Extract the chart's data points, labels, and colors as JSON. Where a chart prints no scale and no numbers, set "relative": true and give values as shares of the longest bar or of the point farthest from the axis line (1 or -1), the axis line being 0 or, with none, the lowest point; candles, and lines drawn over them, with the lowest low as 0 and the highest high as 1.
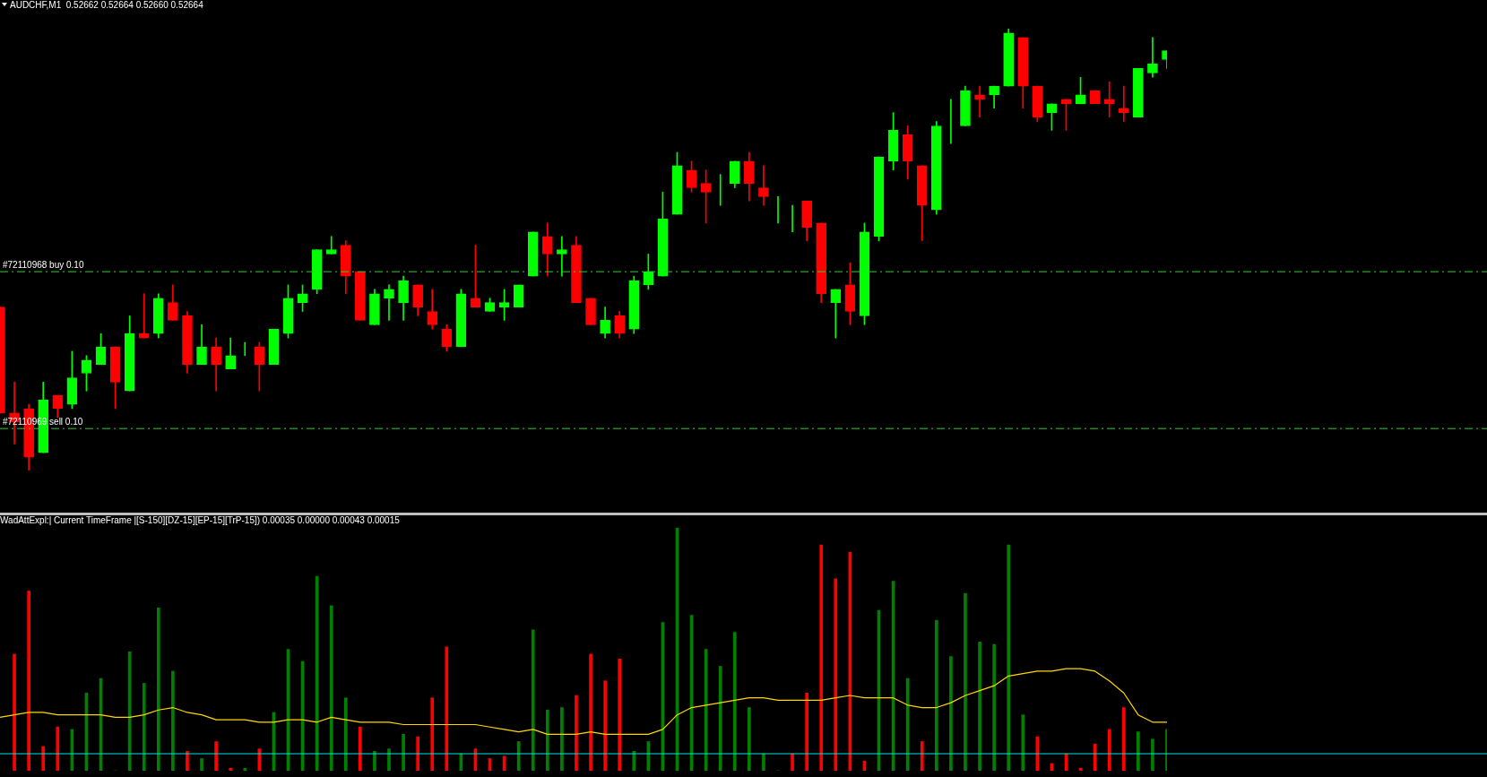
{
  "chart_data": [
    {
      "type": "candlestick",
      "title": "AUDCHF,M1  0.52662 0.52664 0.52660 0.52664",
      "relative": true,
      "categories": [
        null,
        null,
        null,
        null,
        null,
        null,
        null,
        null,
        null,
        null,
        null,
        null,
        null,
        null,
        null,
        null,
        null,
        null,
        null,
        null,
        null,
        null,
        null,
        null,
        null,
        null,
        null,
        null,
        null,
        null,
        null,
        null,
        null,
        null,
        null,
        null,
        null,
        null,
        null,
        null,
        null,
        null,
        null,
        null,
        null,
        null,
        null,
        null,
        null,
        null,
        null,
        null,
        null,
        null,
        null,
        null,
        null,
        null,
        null,
        null,
        null,
        null,
        null,
        null,
        null,
        null,
        null,
        null,
        null,
        null,
        null,
        null,
        null,
        null,
        null,
        null,
        null,
        null,
        null,
        null,
        null,
        null
      ],
      "ohlc": [
        [
          0.37,
          0.37,
          0.13,
          0.13
        ],
        [
          0.13,
          0.2,
          0.06,
          0.11
        ],
        [
          0.14,
          0.15,
          0,
          0.03
        ],
        [
          0.04,
          0.2,
          0.04,
          0.16
        ],
        [
          0.17,
          0.17,
          0.12,
          0.14
        ],
        [
          0.15,
          0.27,
          0.14,
          0.21
        ],
        [
          0.22,
          0.26,
          0.18,
          0.25
        ],
        [
          0.24,
          0.31,
          0.24,
          0.28
        ],
        [
          0.28,
          0.28,
          0.14,
          0.2
        ],
        [
          0.18,
          0.35,
          0.18,
          0.31
        ],
        [
          0.31,
          0.4,
          0.3,
          0.3
        ],
        [
          0.31,
          0.4,
          0.3,
          0.39
        ],
        [
          0.38,
          0.42,
          0.34,
          0.34
        ],
        [
          0.35,
          0.36,
          0.22,
          0.24
        ],
        [
          0.24,
          0.33,
          0.24,
          0.28
        ],
        [
          0.28,
          0.3,
          0.18,
          0.24
        ],
        [
          0.23,
          0.3,
          0.23,
          0.26
        ],
        [
          0.27,
          0.29,
          0.26,
          0.27
        ],
        [
          0.28,
          0.29,
          0.18,
          0.24
        ],
        [
          0.24,
          0.32,
          0.24,
          0.32
        ],
        [
          0.31,
          0.42,
          0.3,
          0.39
        ],
        [
          0.38,
          0.42,
          0.36,
          0.4
        ],
        [
          0.41,
          0.5,
          0.4,
          0.5
        ],
        [
          0.49,
          0.53,
          0.49,
          0.5
        ],
        [
          0.51,
          0.52,
          0.4,
          0.44
        ],
        [
          0.45,
          0.45,
          0.34,
          0.34
        ],
        [
          0.33,
          0.41,
          0.33,
          0.4
        ],
        [
          0.39,
          0.42,
          0.34,
          0.41
        ],
        [
          0.38,
          0.44,
          0.34,
          0.43
        ],
        [
          0.42,
          0.42,
          0.35,
          0.37
        ],
        [
          0.36,
          0.41,
          0.32,
          0.33
        ],
        [
          0.32,
          0.33,
          0.27,
          0.28
        ],
        [
          0.28,
          0.41,
          0.28,
          0.4
        ],
        [
          0.39,
          0.51,
          0.37,
          0.37
        ],
        [
          0.36,
          0.39,
          0.36,
          0.38
        ],
        [
          0.37,
          0.41,
          0.34,
          0.38
        ],
        [
          0.37,
          0.42,
          0.37,
          0.42
        ],
        [
          0.44,
          0.54,
          0.44,
          0.54
        ],
        [
          0.53,
          0.56,
          0.44,
          0.49
        ],
        [
          0.49,
          0.53,
          0.44,
          0.5
        ],
        [
          0.51,
          0.53,
          0.38,
          0.38
        ],
        [
          0.39,
          0.39,
          0.33,
          0.33
        ],
        [
          0.31,
          0.37,
          0.3,
          0.34
        ],
        [
          0.35,
          0.36,
          0.3,
          0.31
        ],
        [
          0.32,
          0.44,
          0.31,
          0.43
        ],
        [
          0.42,
          0.49,
          0.41,
          0.45
        ],
        [
          0.44,
          0.63,
          0.44,
          0.57
        ],
        [
          0.58,
          0.72,
          0.58,
          0.69
        ],
        [
          0.68,
          0.7,
          0.63,
          0.64
        ],
        [
          0.65,
          0.68,
          0.56,
          0.63
        ],
        [
          0.64,
          0.67,
          0.6,
          0.64
        ],
        [
          0.65,
          0.7,
          0.64,
          0.7
        ],
        [
          0.7,
          0.72,
          0.61,
          0.65
        ],
        [
          0.64,
          0.69,
          0.6,
          0.62
        ],
        [
          0.61,
          0.62,
          0.56,
          0.61
        ],
        [
          0.6,
          0.6,
          0.54,
          0.6
        ],
        [
          0.61,
          0.61,
          0.52,
          0.55
        ],
        [
          0.56,
          0.56,
          0.38,
          0.4
        ],
        [
          0.38,
          0.41,
          0.3,
          0.41
        ],
        [
          0.42,
          0.47,
          0.33,
          0.36
        ],
        [
          0.35,
          0.56,
          0.33,
          0.54
        ],
        [
          0.53,
          0.71,
          0.52,
          0.71
        ],
        [
          0.7,
          0.81,
          0.68,
          0.77
        ],
        [
          0.76,
          0.78,
          0.66,
          0.7
        ],
        [
          0.69,
          0.69,
          0.52,
          0.6
        ],
        [
          0.59,
          0.79,
          0.58,
          0.78
        ],
        [
          0.77,
          0.84,
          0.74,
          0.77
        ],
        [
          0.78,
          0.87,
          0.78,
          0.86
        ],
        [
          0.85,
          0.87,
          0.8,
          0.84
        ],
        [
          0.85,
          0.87,
          0.82,
          0.87
        ],
        [
          0.87,
          1,
          0.87,
          0.99
        ],
        [
          0.98,
          0.98,
          0.82,
          0.87
        ],
        [
          0.87,
          0.87,
          0.79,
          0.8
        ],
        [
          0.81,
          0.83,
          0.77,
          0.83
        ],
        [
          0.84,
          0.84,
          0.77,
          0.83
        ],
        [
          0.83,
          0.89,
          0.83,
          0.85
        ],
        [
          0.86,
          0.86,
          0.83,
          0.83
        ],
        [
          0.84,
          0.88,
          0.8,
          0.83
        ],
        [
          0.82,
          0.87,
          0.79,
          0.81
        ],
        [
          0.8,
          0.91,
          0.8,
          0.91
        ],
        [
          0.9,
          0.98,
          0.89,
          0.92
        ],
        [
          0.93,
          0.95,
          0.91,
          0.95
        ]
      ],
      "colors": [
        "#ff0000",
        "#ff0000",
        "#ff0000",
        "#00ff00",
        "#ff0000",
        "#00ff00",
        "#00ff00",
        "#00ff00",
        "#ff0000",
        "#00ff00",
        "#ff0000",
        "#00ff00",
        "#ff0000",
        "#ff0000",
        "#00ff00",
        "#ff0000",
        "#00ff00",
        "#00ff00",
        "#ff0000",
        "#00ff00",
        "#00ff00",
        "#00ff00",
        "#00ff00",
        "#00ff00",
        "#ff0000",
        "#ff0000",
        "#00ff00",
        "#00ff00",
        "#00ff00",
        "#ff0000",
        "#ff0000",
        "#ff0000",
        "#00ff00",
        "#ff0000",
        "#00ff00",
        "#00ff00",
        "#00ff00",
        "#00ff00",
        "#ff0000",
        "#00ff00",
        "#ff0000",
        "#ff0000",
        "#00ff00",
        "#ff0000",
        "#00ff00",
        "#00ff00",
        "#00ff00",
        "#00ff00",
        "#ff0000",
        "#ff0000",
        "#00ff00",
        "#00ff00",
        "#ff0000",
        "#ff0000",
        "#00ff00",
        "#00ff00",
        "#ff0000",
        "#ff0000",
        "#00ff00",
        "#ff0000",
        "#00ff00",
        "#00ff00",
        "#00ff00",
        "#ff0000",
        "#ff0000",
        "#00ff00",
        "#00ff00",
        "#00ff00",
        "#ff0000",
        "#00ff00",
        "#00ff00",
        "#ff0000",
        "#ff0000",
        "#00ff00",
        "#ff0000",
        "#00ff00",
        "#ff0000",
        "#ff0000",
        "#ff0000",
        "#00ff00",
        "#00ff00",
        "#00ff00"
      ],
      "ref_lines": [
        {
          "axis": "y",
          "value": 0.45,
          "label": "#72110968 buy 0.10",
          "color": "#32cd32",
          "line_style": "dashed"
        },
        {
          "axis": "y",
          "value": 0.095,
          "label": "#72110969 sell 0.10",
          "color": "#32cd32",
          "line_style": "dashed"
        }
      ]
    },
    {
      "type": "bar",
      "title": "WadAttExpl:| Current TimeFrame |[S-150][DZ-15][EP-15][TrP-15]) 0.00035 0.00000 0.00043 0.00015",
      "relative": true,
      "categories": [
        null,
        null,
        null,
        null,
        null,
        null,
        null,
        null,
        null,
        null,
        null,
        null,
        null,
        null,
        null,
        null,
        null,
        null,
        null,
        null,
        null,
        null,
        null,
        null,
        null,
        null,
        null,
        null,
        null,
        null,
        null,
        null,
        null,
        null,
        null,
        null,
        null,
        null,
        null,
        null,
        null,
        null,
        null,
        null,
        null,
        null,
        null,
        null,
        null,
        null,
        null,
        null,
        null,
        null,
        null,
        null,
        null,
        null,
        null,
        null,
        null,
        null,
        null,
        null,
        null,
        null,
        null,
        null,
        null,
        null,
        null,
        null,
        null,
        null,
        null,
        null,
        null,
        null,
        null,
        null,
        null,
        null
      ],
      "series": [
        {
          "color": "#008000",
          "values": [
            null,
            null,
            null,
            null,
            null,
            0.17,
            0.32,
            0.38,
            0,
            0.49,
            0.36,
            0.67,
            0.41,
            null,
            0.05,
            null,
            null,
            0.01,
            null,
            0.24,
            0.5,
            0.45,
            0.8,
            0.68,
            0.3,
            null,
            0.08,
            0.09,
            0.15,
            null,
            null,
            null,
            0.07,
            null,
            null,
            null,
            0.12,
            0.58,
            0.25,
            0.26,
            null,
            null,
            null,
            null,
            0.08,
            0.12,
            0.61,
            1,
            0.64,
            0.5,
            0.43,
            0.57,
            0.26,
            0.07,
            null,
            null,
            null,
            null,
            null,
            null,
            null,
            0.66,
            0.78,
            0.38,
            null,
            0.62,
            0.47,
            0.73,
            0.53,
            0.52,
            0.93,
            0.23,
            null,
            null,
            null,
            null,
            null,
            null,
            null,
            0.16,
            0.13,
            0.17
          ]
        },
        {
          "color": "#ff0000",
          "values": [
            null,
            0.48,
            0.74,
            0.1,
            0.18,
            null,
            null,
            null,
            null,
            null,
            null,
            null,
            null,
            0.08,
            null,
            0.12,
            0.01,
            null,
            0.09,
            null,
            null,
            null,
            null,
            null,
            null,
            0.18,
            null,
            null,
            null,
            0.14,
            0.3,
            0.51,
            null,
            0.09,
            0.05,
            0.06,
            null,
            null,
            null,
            null,
            0.31,
            0.48,
            0.37,
            0.46,
            null,
            null,
            null,
            null,
            null,
            null,
            null,
            null,
            null,
            null,
            0,
            0.07,
            0.32,
            0.93,
            0.79,
            0.9,
            0.04,
            null,
            null,
            null,
            0.12,
            null,
            null,
            null,
            null,
            null,
            null,
            null,
            0.14,
            0.03,
            0.07,
            0.01,
            0.11,
            0.17,
            0.26,
            null,
            null,
            null
          ]
        },
        {
          "type": "line",
          "color": "#ffd700",
          "values": [
            0.22,
            0.23,
            0.24,
            0.24,
            0.23,
            0.23,
            0.23,
            0.23,
            0.22,
            0.22,
            0.23,
            0.25,
            0.26,
            0.24,
            0.23,
            0.21,
            0.21,
            0.21,
            0.2,
            0.2,
            0.21,
            0.21,
            0.2,
            0.22,
            0.21,
            0.2,
            0.2,
            0.2,
            0.19,
            0.19,
            0.19,
            0.19,
            0.19,
            0.19,
            0.18,
            0.17,
            0.16,
            0.17,
            0.15,
            0.15,
            0.15,
            0.16,
            0.15,
            0.15,
            0.15,
            0.15,
            0.17,
            0.23,
            0.26,
            0.27,
            0.28,
            0.29,
            0.3,
            0.3,
            0.29,
            0.29,
            0.29,
            0.29,
            0.3,
            0.31,
            0.3,
            0.3,
            0.3,
            0.27,
            0.26,
            0.26,
            0.28,
            0.31,
            0.33,
            0.35,
            0.39,
            0.4,
            0.41,
            0.41,
            0.42,
            0.42,
            0.41,
            0.37,
            0.32,
            0.23,
            0.2,
            0.2
          ]
        }
      ],
      "ref_lines": [
        {
          "axis": "y",
          "value": 0.07,
          "color": "#00e5e5",
          "line_style": "solid"
        }
      ]
    }
  ]
}
